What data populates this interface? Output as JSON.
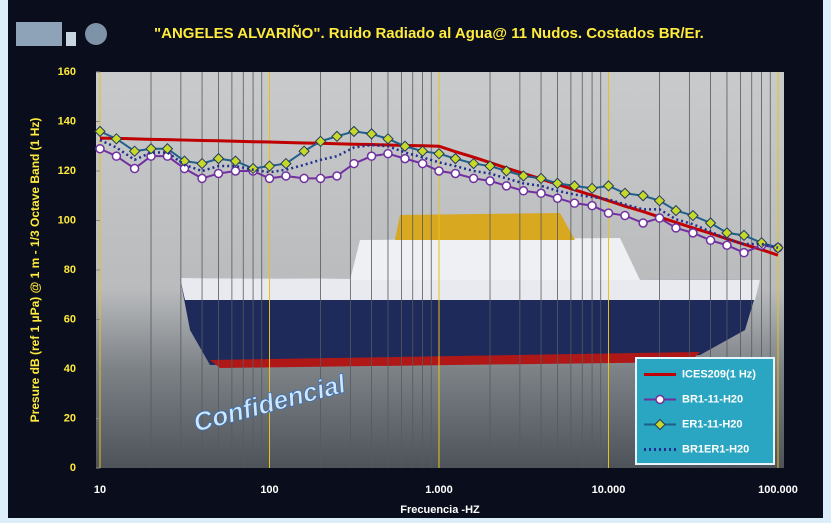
{
  "chart_data": {
    "type": "line",
    "title": "\"ANGELES ALVARIÑO\". Ruido Radiado al Agua@ 11 Nudos. Costados BR/Er.",
    "x_label": "Frecuencia -HZ",
    "y_label": "Presure dB (ref  1 µPa) @ 1 m - 1/3 Octave Band (1 Hz)",
    "annotation": "Confidencial",
    "x_scale": "log",
    "x": [
      10,
      12.5,
      16,
      20,
      25,
      31.5,
      40,
      50,
      63,
      80,
      100,
      125,
      160,
      200,
      250,
      315,
      400,
      500,
      630,
      800,
      1000,
      1250,
      1600,
      2000,
      2500,
      3150,
      4000,
      5000,
      6300,
      8000,
      10000,
      12500,
      16000,
      20000,
      25000,
      31500,
      40000,
      50000,
      63000,
      80000,
      100000
    ],
    "xlim": [
      10,
      100000
    ],
    "xticks": [
      10,
      100,
      {
        "value": 1000,
        "label": "1.000"
      },
      {
        "value": 10000,
        "label": "10.000"
      },
      {
        "value": 100000,
        "label": "100.000"
      }
    ],
    "ylim": [
      0,
      160
    ],
    "yticks": [
      0,
      20,
      40,
      60,
      80,
      100,
      120,
      140,
      160
    ],
    "grid": true,
    "legend": "lower right",
    "series": [
      {
        "name": "ICES209(1 Hz)",
        "color": "#c00000",
        "marker": "none",
        "dash": "solid",
        "values": [
          133.3,
          133.2,
          133.0,
          132.8,
          132.7,
          132.5,
          132.3,
          132.2,
          132.0,
          131.8,
          131.7,
          131.5,
          131.3,
          131.2,
          131.0,
          130.8,
          130.7,
          130.5,
          130.3,
          130.2,
          130.0,
          127.8,
          125.6,
          123.4,
          121.2,
          119.0,
          116.8,
          114.6,
          112.4,
          110.2,
          108.0,
          105.8,
          103.6,
          101.4,
          99.2,
          97.0,
          94.8,
          92.6,
          90.4,
          88.2,
          86.0
        ]
      },
      {
        "name": "BR1-11-H20",
        "color": "#7030a0",
        "marker": "circle",
        "dash": "solid",
        "values": [
          129,
          126,
          121,
          126,
          126,
          121,
          117,
          119,
          120,
          120,
          117,
          118,
          117,
          117,
          118,
          123,
          126,
          127,
          125,
          123,
          120,
          119,
          117,
          116,
          114,
          112,
          111,
          109,
          107,
          106,
          103,
          102,
          99,
          101,
          97,
          95,
          92,
          90,
          87,
          90,
          89
        ]
      },
      {
        "name": "ER1-11-H20",
        "color": "#1f5f8b",
        "marker": "diamond",
        "dash": "solid",
        "values": [
          136,
          133,
          128,
          129,
          129,
          124,
          123,
          125,
          124,
          121,
          122,
          123,
          128,
          132,
          134,
          136,
          135,
          133,
          130,
          128,
          127,
          125,
          123,
          122,
          120,
          118,
          117,
          115,
          114,
          113,
          114,
          111,
          110,
          108,
          104,
          102,
          99,
          95,
          94,
          91,
          89
        ]
      },
      {
        "name": "BR1ER1-H20",
        "color": "#1f2f8f",
        "marker": "none",
        "dash": "dotted",
        "values": [
          132.5,
          129.5,
          124.5,
          127.5,
          127.5,
          122.5,
          120,
          122,
          122,
          120.5,
          119.5,
          120.5,
          122.5,
          124.5,
          126,
          129.5,
          130.5,
          130,
          127.5,
          125.5,
          123.5,
          122,
          120,
          119,
          117,
          115,
          114,
          112,
          110.5,
          109.5,
          108.5,
          106.5,
          104.5,
          104.5,
          100.5,
          98.5,
          95.5,
          92.5,
          90.5,
          90.5,
          89
        ]
      }
    ]
  }
}
